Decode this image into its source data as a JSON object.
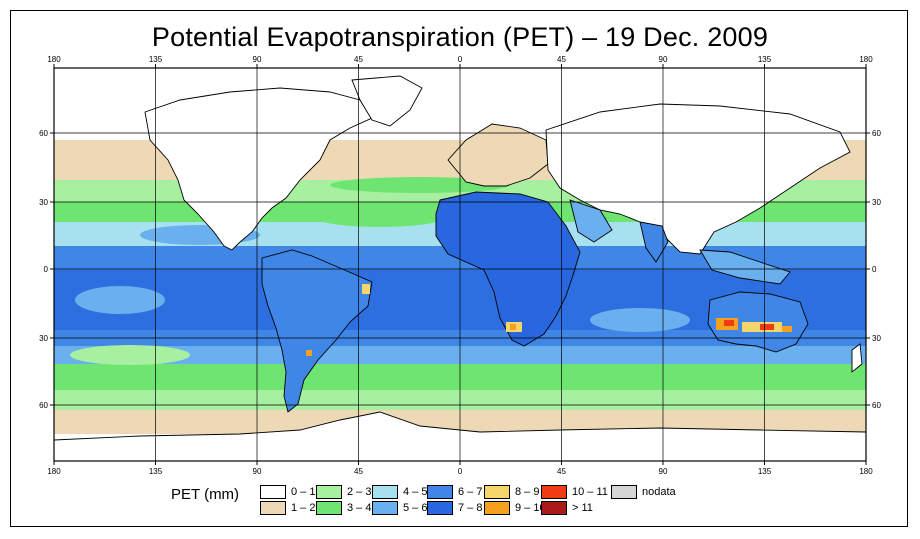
{
  "title": "Potential Evapotranspiration (PET) – 19 Dec. 2009",
  "axes": {
    "lon_ticks": [
      "180",
      "135",
      "90",
      "45",
      "0",
      "45",
      "90",
      "135",
      "180"
    ],
    "lat_ticks_left": [
      "60",
      "30",
      "0",
      "30",
      "60"
    ],
    "lat_ticks_right": [
      "60",
      "30",
      "0",
      "30",
      "60"
    ]
  },
  "legend": {
    "title": "PET (mm)",
    "items": [
      {
        "label": "0 – 1",
        "color": "#ffffff"
      },
      {
        "label": "1 – 2",
        "color": "#eed9b6"
      },
      {
        "label": "2 – 3",
        "color": "#a7f0a0"
      },
      {
        "label": "3 – 4",
        "color": "#6ee571"
      },
      {
        "label": "4 – 5",
        "color": "#a7e1f0"
      },
      {
        "label": "5 – 6",
        "color": "#6aafee"
      },
      {
        "label": "6 – 7",
        "color": "#3f86e6"
      },
      {
        "label": "7 – 8",
        "color": "#2867dd"
      },
      {
        "label": "8 – 9",
        "color": "#f4d56a"
      },
      {
        "label": "9 – 10",
        "color": "#f4a11f"
      },
      {
        "label": "10 – 11",
        "color": "#ef3c12"
      },
      {
        "label": "> 11",
        "color": "#a81b16"
      },
      {
        "label": "nodata",
        "color": "#d5d5d5"
      }
    ]
  }
}
